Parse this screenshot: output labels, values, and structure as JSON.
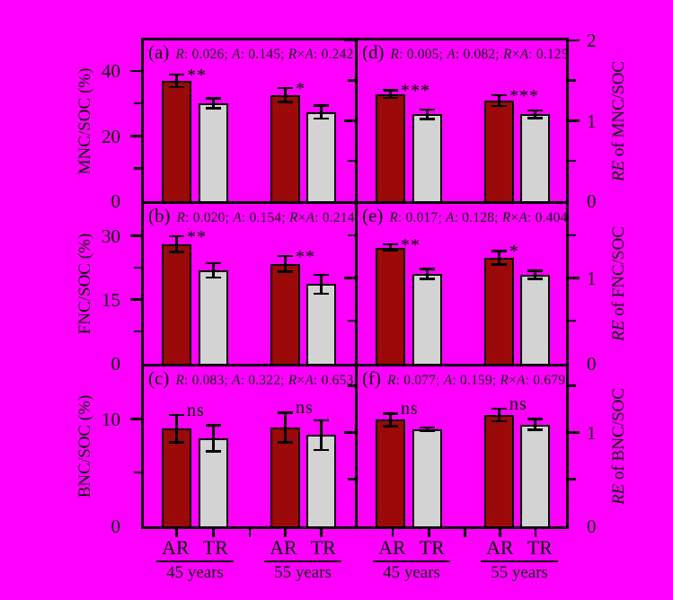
{
  "figure": {
    "background": "#FF00FF",
    "frame_color": "#000000",
    "bar_fill_AR": "#9B0909",
    "bar_fill_TR": "#D3D3D3"
  },
  "x_axis": {
    "groups": [
      {
        "labels": [
          "AR",
          "TR"
        ],
        "age": "45 years"
      },
      {
        "labels": [
          "AR",
          "TR"
        ],
        "age": "55 years"
      },
      {
        "labels": [
          "AR",
          "TR"
        ],
        "age": "45 years"
      },
      {
        "labels": [
          "AR",
          "TR"
        ],
        "age": "55 years"
      }
    ]
  },
  "chart_data": [
    {
      "id": "a",
      "panel": "(a)",
      "type": "bar",
      "axis_side": "left",
      "ylabel": "MNC/SOC (%)",
      "stats": [
        {
          "factor": "R",
          "p": "0.026"
        },
        {
          "factor": "A",
          "p": "0.145"
        },
        {
          "factor": "R×A",
          "p": "0.242"
        }
      ],
      "categories": [
        "AR 45 years",
        "TR 45 years",
        "AR 55 years",
        "TR 55 years"
      ],
      "values": [
        37.0,
        30.1,
        32.6,
        27.4
      ],
      "errors": [
        2.0,
        1.6,
        2.2,
        2.1
      ],
      "significance": [
        "**",
        "*"
      ],
      "ylim": [
        0,
        49.4
      ],
      "yticks": [
        {
          "v": 0,
          "label": "0"
        },
        {
          "v": 10
        },
        {
          "v": 20,
          "label": "20"
        },
        {
          "v": 30
        },
        {
          "v": 40,
          "label": "40"
        }
      ]
    },
    {
      "id": "b",
      "panel": "(b)",
      "type": "bar",
      "axis_side": "left",
      "ylabel": "FNC/SOC (%)",
      "stats": [
        {
          "factor": "R",
          "p": "0.020"
        },
        {
          "factor": "A",
          "p": "0.154"
        },
        {
          "factor": "R×A",
          "p": "0.214"
        }
      ],
      "categories": [
        "AR 45 years",
        "TR 45 years",
        "AR 55 years",
        "TR 55 years"
      ],
      "values": [
        28.1,
        22.0,
        23.5,
        18.7
      ],
      "errors": [
        1.9,
        1.75,
        1.9,
        2.25
      ],
      "significance": [
        "**",
        "**"
      ],
      "ylim": [
        0,
        37.6
      ],
      "yticks": [
        {
          "v": 0,
          "label": "0"
        },
        {
          "v": 7.5
        },
        {
          "v": 15,
          "label": "15"
        },
        {
          "v": 22.5
        },
        {
          "v": 30,
          "label": "30"
        }
      ]
    },
    {
      "id": "c",
      "panel": "(c)",
      "type": "bar",
      "axis_side": "left",
      "ylabel": "BNC/SOC (%)",
      "stats": [
        {
          "factor": "R",
          "p": "0.083"
        },
        {
          "factor": "A",
          "p": "0.322"
        },
        {
          "factor": "R×A",
          "p": "0.653"
        }
      ],
      "categories": [
        "AR 45 years",
        "TR 45 years",
        "AR 55 years",
        "TR 55 years"
      ],
      "values": [
        9.1,
        8.2,
        9.2,
        8.5
      ],
      "errors": [
        1.3,
        1.25,
        1.4,
        1.4
      ],
      "significance": [
        "ns",
        "ns"
      ],
      "ylim": [
        0,
        14.9
      ],
      "yticks": [
        {
          "v": 0,
          "label": "0"
        },
        {
          "v": 5
        },
        {
          "v": 10,
          "label": "10"
        }
      ]
    },
    {
      "id": "d",
      "panel": "(d)",
      "type": "bar",
      "axis_side": "right",
      "ylabel": "RE of MNC/SOC",
      "stats": [
        {
          "factor": "R",
          "p": "0.005"
        },
        {
          "factor": "A",
          "p": "0.082"
        },
        {
          "factor": "R×A",
          "p": "0.125"
        }
      ],
      "categories": [
        "AR 45 years",
        "TR 45 years",
        "AR 55 years",
        "TR 55 years"
      ],
      "values": [
        1.33,
        1.08,
        1.25,
        1.08
      ],
      "errors": [
        0.05,
        0.06,
        0.07,
        0.05
      ],
      "significance": [
        "***",
        "***"
      ],
      "ylim": [
        0,
        2
      ],
      "yticks": [
        {
          "v": 0,
          "label": "0"
        },
        {
          "v": 0.5
        },
        {
          "v": 1,
          "label": "1"
        },
        {
          "v": 1.5
        },
        {
          "v": 2,
          "label": "2"
        }
      ]
    },
    {
      "id": "e",
      "panel": "(e)",
      "type": "bar",
      "axis_side": "right",
      "ylabel": "RE of FNC/SOC",
      "stats": [
        {
          "factor": "R",
          "p": "0.017"
        },
        {
          "factor": "A",
          "p": "0.128"
        },
        {
          "factor": "R×A",
          "p": "0.404"
        }
      ],
      "categories": [
        "AR 45 years",
        "TR 45 years",
        "AR 55 years",
        "TR 55 years"
      ],
      "values": [
        1.36,
        1.05,
        1.24,
        1.04
      ],
      "errors": [
        0.04,
        0.06,
        0.08,
        0.05
      ],
      "significance": [
        "**",
        "*"
      ],
      "ylim": [
        0,
        1.87
      ],
      "yticks": [
        {
          "v": 0,
          "label": "0"
        },
        {
          "v": 0.5
        },
        {
          "v": 1,
          "label": "1"
        },
        {
          "v": 1.5
        }
      ]
    },
    {
      "id": "f",
      "panel": "(f)",
      "type": "bar",
      "axis_side": "right",
      "ylabel": "RE of BNC/SOC",
      "stats": [
        {
          "factor": "R",
          "p": "0.077"
        },
        {
          "factor": "A",
          "p": "0.159"
        },
        {
          "factor": "R×A",
          "p": "0.679"
        }
      ],
      "categories": [
        "AR 45 years",
        "TR 45 years",
        "AR 55 years",
        "TR 55 years"
      ],
      "values": [
        1.14,
        1.04,
        1.19,
        1.09
      ],
      "errors": [
        0.07,
        0.02,
        0.07,
        0.06
      ],
      "significance": [
        "ns",
        "ns"
      ],
      "ylim": [
        0,
        1.71
      ],
      "yticks": [
        {
          "v": 0,
          "label": "0"
        },
        {
          "v": 0.5
        },
        {
          "v": 1,
          "label": "1"
        },
        {
          "v": 1.5
        }
      ]
    }
  ]
}
